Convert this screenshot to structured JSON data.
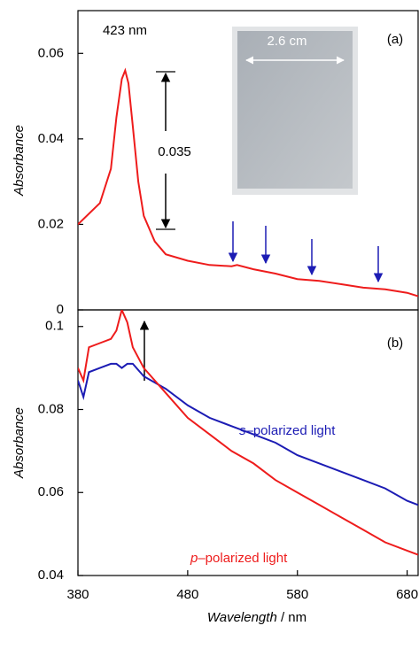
{
  "chart_data": [
    {
      "type": "line",
      "y_label": "Absorbance",
      "xlim": [
        380,
        690
      ],
      "ylim": [
        0,
        0.07
      ],
      "yticks": [
        0,
        0.02,
        0.04,
        0.06
      ],
      "annotations": [
        "423 nm",
        "0.035",
        "2.6 cm",
        "(a)"
      ],
      "x": [
        380,
        400,
        410,
        415,
        420,
        423,
        426,
        430,
        435,
        440,
        450,
        460,
        480,
        500,
        520,
        525,
        540,
        560,
        580,
        600,
        620,
        640,
        660,
        680,
        690
      ],
      "series": [
        {
          "name": null,
          "color": "#ee1c1c",
          "values": [
            0.02,
            0.025,
            0.033,
            0.045,
            0.054,
            0.056,
            0.053,
            0.043,
            0.03,
            0.022,
            0.016,
            0.013,
            0.0115,
            0.0105,
            0.0102,
            0.0105,
            0.0095,
            0.0085,
            0.0072,
            0.0068,
            0.006,
            0.0052,
            0.0048,
            0.004,
            0.0032
          ]
        }
      ]
    },
    {
      "type": "line",
      "y_label": "Absorbance",
      "x_label": "Wavelength / nm",
      "xlim": [
        380,
        690
      ],
      "xticks": [
        380,
        480,
        580,
        680
      ],
      "ylim": [
        0.04,
        0.104
      ],
      "yticks": [
        0.04,
        0.06,
        0.08,
        0.1
      ],
      "annotations": [
        "(b)"
      ],
      "x": [
        380,
        385,
        390,
        400,
        410,
        415,
        420,
        425,
        430,
        440,
        460,
        480,
        500,
        520,
        540,
        560,
        580,
        600,
        620,
        640,
        660,
        680,
        690
      ],
      "series": [
        {
          "name": "s–polarized light",
          "color": "#1c1cb4",
          "values": [
            0.087,
            0.083,
            0.089,
            0.09,
            0.091,
            0.091,
            0.09,
            0.091,
            0.091,
            0.088,
            0.085,
            0.081,
            0.078,
            0.076,
            0.074,
            0.072,
            0.069,
            0.067,
            0.065,
            0.063,
            0.061,
            0.058,
            0.057
          ]
        },
        {
          "name": "p–polarized light",
          "color": "#ee1c1c",
          "values": [
            0.09,
            0.087,
            0.095,
            0.096,
            0.097,
            0.099,
            0.104,
            0.101,
            0.095,
            0.09,
            0.084,
            0.078,
            0.074,
            0.07,
            0.067,
            0.063,
            0.06,
            0.057,
            0.054,
            0.051,
            0.048,
            0.046,
            0.045
          ]
        }
      ]
    }
  ]
}
